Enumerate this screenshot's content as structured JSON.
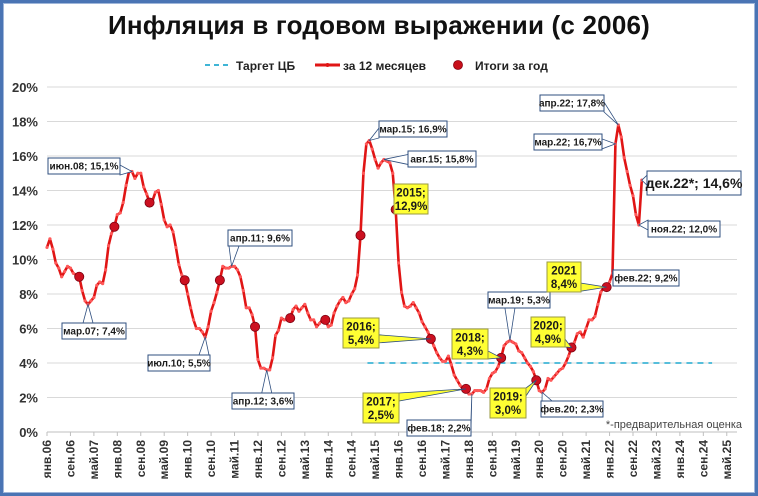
{
  "title": "Инфляция в годовом выражении (с 2006)",
  "legend": [
    {
      "label": "Таргет ЦБ",
      "style": "dashed",
      "color": "#3fb5d6"
    },
    {
      "label": "за 12 месяцев",
      "style": "line-marker",
      "color": "#e01515"
    },
    {
      "label": "Итоги за год",
      "style": "dot",
      "color": "#c8101a"
    }
  ],
  "footnote": "*-предварительная оценка",
  "colors": {
    "line": "#e01515",
    "dot": "#cc1020",
    "target": "#3fb5d6",
    "grid": "#d9d9d9",
    "callout_yellow": "#ffff33",
    "callout_border": "#2f4f7f",
    "frame": "#4a74b4"
  },
  "chart_data": {
    "type": "line",
    "title": "Инфляция в годовом выражении (с 2006)",
    "xlabel": "",
    "ylabel": "",
    "ylim": [
      0,
      20
    ],
    "yticks": [
      "0%",
      "2%",
      "4%",
      "6%",
      "8%",
      "10%",
      "12%",
      "14%",
      "16%",
      "18%",
      "20%"
    ],
    "xticks": [
      "янв.06",
      "сен.06",
      "май.07",
      "янв.08",
      "сен.08",
      "май.09",
      "янв.10",
      "сен.10",
      "май.11",
      "янв.12",
      "сен.12",
      "май.13",
      "янв.14",
      "сен.14",
      "май.15",
      "янв.16",
      "сен.16",
      "май.17",
      "янв.18",
      "сен.18",
      "май.19",
      "янв.20",
      "сен.20",
      "май.21",
      "янв.22",
      "сен.22",
      "май.23",
      "янв.24",
      "сен.24",
      "май.25"
    ],
    "grid": true,
    "legend_position": "top",
    "series": [
      {
        "name": "за 12 месяцев",
        "points": [
          [
            "янв.06",
            10.7
          ],
          [
            "фев.06",
            11.2
          ],
          [
            "мар.06",
            10.6
          ],
          [
            "апр.06",
            9.8
          ],
          [
            "май.06",
            9.5
          ],
          [
            "июн.06",
            9.0
          ],
          [
            "июл.06",
            9.3
          ],
          [
            "авг.06",
            9.6
          ],
          [
            "сен.06",
            9.5
          ],
          [
            "окт.06",
            9.2
          ],
          [
            "ноя.06",
            9.1
          ],
          [
            "дек.06",
            9.0
          ],
          [
            "янв.07",
            8.2
          ],
          [
            "фев.07",
            7.6
          ],
          [
            "мар.07",
            7.4
          ],
          [
            "апр.07",
            7.6
          ],
          [
            "май.07",
            7.8
          ],
          [
            "июн.07",
            8.5
          ],
          [
            "июл.07",
            8.7
          ],
          [
            "авг.07",
            8.6
          ],
          [
            "сен.07",
            9.4
          ],
          [
            "окт.07",
            10.8
          ],
          [
            "ноя.07",
            11.5
          ],
          [
            "дек.07",
            11.9
          ],
          [
            "янв.08",
            12.6
          ],
          [
            "фев.08",
            12.7
          ],
          [
            "мар.08",
            13.3
          ],
          [
            "апр.08",
            14.3
          ],
          [
            "май.08",
            15.1
          ],
          [
            "июн.08",
            15.1
          ],
          [
            "июл.08",
            14.7
          ],
          [
            "авг.08",
            15.0
          ],
          [
            "сен.08",
            15.0
          ],
          [
            "окт.08",
            14.2
          ],
          [
            "ноя.08",
            13.8
          ],
          [
            "дек.08",
            13.3
          ],
          [
            "янв.09",
            13.4
          ],
          [
            "фев.09",
            13.9
          ],
          [
            "мар.09",
            14.0
          ],
          [
            "апр.09",
            13.2
          ],
          [
            "май.09",
            12.3
          ],
          [
            "июн.09",
            11.9
          ],
          [
            "июл.09",
            12.0
          ],
          [
            "авг.09",
            11.6
          ],
          [
            "сен.09",
            10.7
          ],
          [
            "окт.09",
            9.7
          ],
          [
            "ноя.09",
            9.1
          ],
          [
            "дек.09",
            8.8
          ],
          [
            "янв.10",
            8.0
          ],
          [
            "фев.10",
            7.2
          ],
          [
            "мар.10",
            6.5
          ],
          [
            "апр.10",
            6.0
          ],
          [
            "май.10",
            6.0
          ],
          [
            "июн.10",
            5.8
          ],
          [
            "июл.10",
            5.5
          ],
          [
            "авг.10",
            6.1
          ],
          [
            "сен.10",
            7.0
          ],
          [
            "окт.10",
            7.5
          ],
          [
            "ноя.10",
            8.1
          ],
          [
            "дек.10",
            8.8
          ],
          [
            "янв.11",
            9.6
          ],
          [
            "фев.11",
            9.5
          ],
          [
            "мар.11",
            9.5
          ],
          [
            "апр.11",
            9.6
          ],
          [
            "май.11",
            9.6
          ],
          [
            "июн.11",
            9.4
          ],
          [
            "июл.11",
            9.0
          ],
          [
            "авг.11",
            8.2
          ],
          [
            "сен.11",
            7.2
          ],
          [
            "окт.11",
            7.2
          ],
          [
            "ноя.11",
            6.8
          ],
          [
            "дек.11",
            6.1
          ],
          [
            "янв.12",
            4.2
          ],
          [
            "фев.12",
            3.7
          ],
          [
            "мар.12",
            3.7
          ],
          [
            "апр.12",
            3.6
          ],
          [
            "май.12",
            3.6
          ],
          [
            "июн.12",
            4.3
          ],
          [
            "июл.12",
            5.6
          ],
          [
            "авг.12",
            5.9
          ],
          [
            "сен.12",
            6.6
          ],
          [
            "окт.12",
            6.5
          ],
          [
            "ноя.12",
            6.5
          ],
          [
            "дек.12",
            6.6
          ],
          [
            "янв.13",
            7.1
          ],
          [
            "фев.13",
            7.3
          ],
          [
            "мар.13",
            7.0
          ],
          [
            "апр.13",
            7.2
          ],
          [
            "май.13",
            7.4
          ],
          [
            "июн.13",
            6.9
          ],
          [
            "июл.13",
            6.5
          ],
          [
            "авг.13",
            6.5
          ],
          [
            "сен.13",
            6.1
          ],
          [
            "окт.13",
            6.3
          ],
          [
            "ноя.13",
            6.5
          ],
          [
            "дек.13",
            6.5
          ],
          [
            "янв.14",
            6.1
          ],
          [
            "фев.14",
            6.2
          ],
          [
            "мар.14",
            6.9
          ],
          [
            "апр.14",
            7.3
          ],
          [
            "май.14",
            7.6
          ],
          [
            "июн.14",
            7.8
          ],
          [
            "июл.14",
            7.5
          ],
          [
            "авг.14",
            7.6
          ],
          [
            "сен.14",
            8.0
          ],
          [
            "окт.14",
            8.3
          ],
          [
            "ноя.14",
            9.1
          ],
          [
            "дек.14",
            11.4
          ],
          [
            "янв.15",
            15.0
          ],
          [
            "фев.15",
            16.7
          ],
          [
            "мар.15",
            16.9
          ],
          [
            "апр.15",
            16.4
          ],
          [
            "май.15",
            15.8
          ],
          [
            "июн.15",
            15.3
          ],
          [
            "июл.15",
            15.6
          ],
          [
            "авг.15",
            15.8
          ],
          [
            "сен.15",
            15.7
          ],
          [
            "окт.15",
            15.6
          ],
          [
            "ноя.15",
            15.0
          ],
          [
            "дек.15",
            12.9
          ],
          [
            "янв.16",
            9.8
          ],
          [
            "фев.16",
            8.1
          ],
          [
            "мар.16",
            7.3
          ],
          [
            "апр.16",
            7.2
          ],
          [
            "май.16",
            7.3
          ],
          [
            "июн.16",
            7.5
          ],
          [
            "июл.16",
            7.2
          ],
          [
            "авг.16",
            6.9
          ],
          [
            "сен.16",
            6.4
          ],
          [
            "окт.16",
            6.1
          ],
          [
            "ноя.16",
            5.8
          ],
          [
            "дек.16",
            5.4
          ],
          [
            "янв.17",
            5.0
          ],
          [
            "фев.17",
            4.6
          ],
          [
            "мар.17",
            4.3
          ],
          [
            "апр.17",
            4.1
          ],
          [
            "май.17",
            4.1
          ],
          [
            "июн.17",
            4.4
          ],
          [
            "июл.17",
            3.9
          ],
          [
            "авг.17",
            3.3
          ],
          [
            "сен.17",
            3.0
          ],
          [
            "окт.17",
            2.7
          ],
          [
            "ноя.17",
            2.5
          ],
          [
            "дек.17",
            2.5
          ],
          [
            "янв.18",
            2.2
          ],
          [
            "фев.18",
            2.2
          ],
          [
            "мар.18",
            2.4
          ],
          [
            "апр.18",
            2.4
          ],
          [
            "май.18",
            2.4
          ],
          [
            "июн.18",
            2.3
          ],
          [
            "июл.18",
            2.5
          ],
          [
            "авг.18",
            3.1
          ],
          [
            "сен.18",
            3.4
          ],
          [
            "окт.18",
            3.5
          ],
          [
            "ноя.18",
            3.8
          ],
          [
            "дек.18",
            4.3
          ],
          [
            "янв.19",
            5.0
          ],
          [
            "фев.19",
            5.2
          ],
          [
            "мар.19",
            5.3
          ],
          [
            "апр.19",
            5.2
          ],
          [
            "май.19",
            5.1
          ],
          [
            "июн.19",
            4.7
          ],
          [
            "июл.19",
            4.6
          ],
          [
            "авг.19",
            4.3
          ],
          [
            "сен.19",
            4.0
          ],
          [
            "окт.19",
            3.8
          ],
          [
            "ноя.19",
            3.5
          ],
          [
            "дек.19",
            3.0
          ],
          [
            "янв.20",
            2.4
          ],
          [
            "фев.20",
            2.3
          ],
          [
            "мар.20",
            2.5
          ],
          [
            "апр.20",
            3.1
          ],
          [
            "май.20",
            3.0
          ],
          [
            "июн.20",
            3.2
          ],
          [
            "июл.20",
            3.4
          ],
          [
            "авг.20",
            3.6
          ],
          [
            "сен.20",
            3.7
          ],
          [
            "окт.20",
            4.0
          ],
          [
            "ноя.20",
            4.4
          ],
          [
            "дек.20",
            4.9
          ],
          [
            "янв.21",
            5.2
          ],
          [
            "фев.21",
            5.7
          ],
          [
            "мар.21",
            5.8
          ],
          [
            "апр.21",
            5.5
          ],
          [
            "май.21",
            6.0
          ],
          [
            "июн.21",
            6.5
          ],
          [
            "июл.21",
            6.5
          ],
          [
            "авг.21",
            6.7
          ],
          [
            "сен.21",
            7.4
          ],
          [
            "окт.21",
            8.1
          ],
          [
            "ноя.21",
            8.4
          ],
          [
            "дек.21",
            8.4
          ],
          [
            "янв.22",
            8.7
          ],
          [
            "фев.22",
            9.2
          ],
          [
            "мар.22",
            16.7
          ],
          [
            "апр.22",
            17.8
          ],
          [
            "май.22",
            17.1
          ],
          [
            "июн.22",
            15.9
          ],
          [
            "июл.22",
            15.1
          ],
          [
            "авг.22",
            14.3
          ],
          [
            "сен.22",
            13.7
          ],
          [
            "окт.22",
            12.6
          ],
          [
            "ноя.22",
            12.0
          ],
          [
            "дек.22*",
            14.6
          ]
        ]
      },
      {
        "name": "Итоги за год",
        "points": [
          [
            "2006",
            9.0
          ],
          [
            "2007",
            11.9
          ],
          [
            "2008",
            13.3
          ],
          [
            "2009",
            8.8
          ],
          [
            "2010",
            8.8
          ],
          [
            "2011",
            6.1
          ],
          [
            "2012",
            6.6
          ],
          [
            "2013",
            6.5
          ],
          [
            "2014",
            11.4
          ],
          [
            "2015",
            12.9
          ],
          [
            "2016",
            5.4
          ],
          [
            "2017",
            2.5
          ],
          [
            "2018",
            4.3
          ],
          [
            "2019",
            3.0
          ],
          [
            "2020",
            4.9
          ],
          [
            "2021",
            8.4
          ]
        ]
      },
      {
        "name": "Таргет ЦБ",
        "points": [
          [
            "янв.15",
            4.0
          ],
          [
            "дек.24",
            4.0
          ]
        ]
      }
    ],
    "annotations": [
      {
        "text": "июн.08; 15,1%",
        "style": "white"
      },
      {
        "text": "мар.07; 7,4%",
        "style": "white"
      },
      {
        "text": "июл.10; 5,5%",
        "style": "white"
      },
      {
        "text": "апр.11; 9,6%",
        "style": "white"
      },
      {
        "text": "апр.12; 3,6%",
        "style": "white"
      },
      {
        "text": "мар.15; 16,9%",
        "style": "white"
      },
      {
        "text": "авг.15; 15,8%",
        "style": "white"
      },
      {
        "text": "фев.18; 2,2%",
        "style": "white"
      },
      {
        "text": "мар.19; 5,3%",
        "style": "white"
      },
      {
        "text": "фев.20; 2,3%",
        "style": "white"
      },
      {
        "text": "фев.22; 9,2%",
        "style": "white"
      },
      {
        "text": "мар.22; 16,7%",
        "style": "white"
      },
      {
        "text": "апр.22; 17,8%",
        "style": "white"
      },
      {
        "text": "ноя.22; 12,0%",
        "style": "white"
      },
      {
        "text": "дек.22*; 14,6%",
        "style": "white-large"
      },
      {
        "text": [
          "2015;",
          "12,9%"
        ],
        "style": "yellow"
      },
      {
        "text": [
          "2016;",
          "5,4%"
        ],
        "style": "yellow"
      },
      {
        "text": [
          "2017;",
          "2,5%"
        ],
        "style": "yellow"
      },
      {
        "text": [
          "2018;",
          "4,3%"
        ],
        "style": "yellow"
      },
      {
        "text": [
          "2019;",
          "3,0%"
        ],
        "style": "yellow"
      },
      {
        "text": [
          "2020;",
          "4,9%"
        ],
        "style": "yellow"
      },
      {
        "text": [
          "2021",
          "8,4%"
        ],
        "style": "yellow"
      }
    ]
  }
}
